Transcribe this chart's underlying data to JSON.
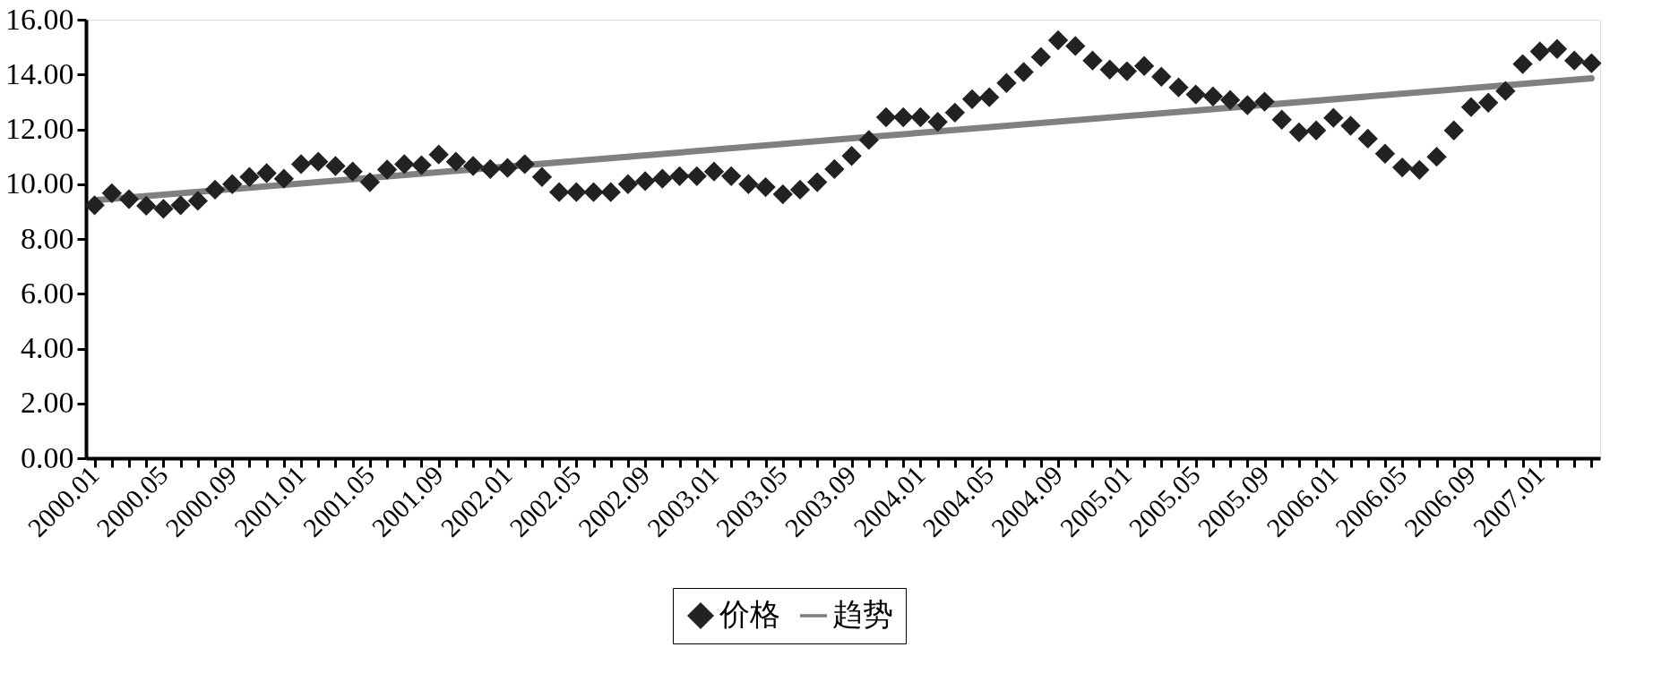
{
  "chart_data": {
    "type": "scatter",
    "categories": [
      "2000.01",
      null,
      null,
      null,
      "2000.05",
      null,
      null,
      null,
      "2000.09",
      null,
      null,
      null,
      "2001.01",
      null,
      null,
      null,
      "2001.05",
      null,
      null,
      null,
      "2001.09",
      null,
      null,
      null,
      "2002.01",
      null,
      null,
      null,
      "2002.05",
      null,
      null,
      null,
      "2002.09",
      null,
      null,
      null,
      "2003.01",
      null,
      null,
      null,
      "2003.05",
      null,
      null,
      null,
      "2003.09",
      null,
      null,
      null,
      "2004.01",
      null,
      null,
      null,
      "2004.05",
      null,
      null,
      null,
      "2004.09",
      null,
      null,
      null,
      "2005.01",
      null,
      null,
      null,
      "2005.05",
      null,
      null,
      null,
      "2005.09",
      null,
      null,
      null,
      "2006.01",
      null,
      null,
      null,
      "2006.05",
      null,
      null,
      null,
      "2006.09",
      null,
      null,
      null,
      "2007.01",
      null,
      null,
      null
    ],
    "series": [
      {
        "name": "价格",
        "marker": "diamond",
        "color": "#222222",
        "values": [
          9.23,
          9.67,
          9.45,
          9.21,
          9.1,
          9.23,
          9.39,
          9.8,
          10.0,
          10.26,
          10.4,
          10.2,
          10.73,
          10.82,
          10.66,
          10.46,
          10.07,
          10.53,
          10.73,
          10.69,
          11.08,
          10.82,
          10.66,
          10.55,
          10.59,
          10.73,
          10.26,
          9.71,
          9.71,
          9.71,
          9.71,
          10.0,
          10.11,
          10.2,
          10.29,
          10.29,
          10.46,
          10.29,
          10.0,
          9.89,
          9.63,
          9.8,
          10.07,
          10.55,
          11.03,
          11.61,
          12.44,
          12.44,
          12.44,
          12.27,
          12.61,
          13.1,
          13.17,
          13.69,
          14.09,
          14.64,
          15.25,
          15.04,
          14.51,
          14.18,
          14.12,
          14.31,
          13.92,
          13.53,
          13.27,
          13.2,
          13.07,
          12.88,
          13.01,
          12.35,
          11.89,
          11.96,
          12.42,
          12.13,
          11.66,
          11.11,
          10.61,
          10.52,
          11.0,
          11.96,
          12.81,
          12.97,
          13.4,
          14.38,
          14.84,
          14.93,
          14.51,
          14.41
        ]
      },
      {
        "name": "趋势",
        "type": "line",
        "marker": "none",
        "color": "#808080",
        "values": [
          9.41,
          null,
          null,
          null,
          null,
          null,
          null,
          null,
          null,
          null,
          null,
          null,
          null,
          null,
          null,
          null,
          null,
          null,
          null,
          null,
          null,
          null,
          null,
          null,
          null,
          null,
          null,
          null,
          null,
          null,
          null,
          null,
          null,
          null,
          null,
          null,
          null,
          null,
          null,
          null,
          null,
          null,
          null,
          null,
          null,
          11.72,
          null,
          null,
          null,
          null,
          null,
          null,
          null,
          null,
          null,
          null,
          null,
          null,
          null,
          null,
          null,
          null,
          null,
          null,
          null,
          null,
          null,
          null,
          null,
          null,
          null,
          null,
          null,
          null,
          null,
          null,
          null,
          null,
          null,
          null,
          null,
          null,
          null,
          null,
          null,
          null,
          null,
          13.86
        ]
      }
    ],
    "ylim": [
      0,
      16
    ],
    "yticks": [
      {
        "value": 0,
        "label": "0.00"
      },
      {
        "value": 2,
        "label": "2.00"
      },
      {
        "value": 4,
        "label": "4.00"
      },
      {
        "value": 6,
        "label": "6.00"
      },
      {
        "value": 8,
        "label": "8.00"
      },
      {
        "value": 10,
        "label": "10.00"
      },
      {
        "value": 12,
        "label": "12.00"
      },
      {
        "value": 14,
        "label": "14.00"
      },
      {
        "value": 16,
        "label": "16.00"
      }
    ],
    "grid": false,
    "legend": "bottom"
  }
}
